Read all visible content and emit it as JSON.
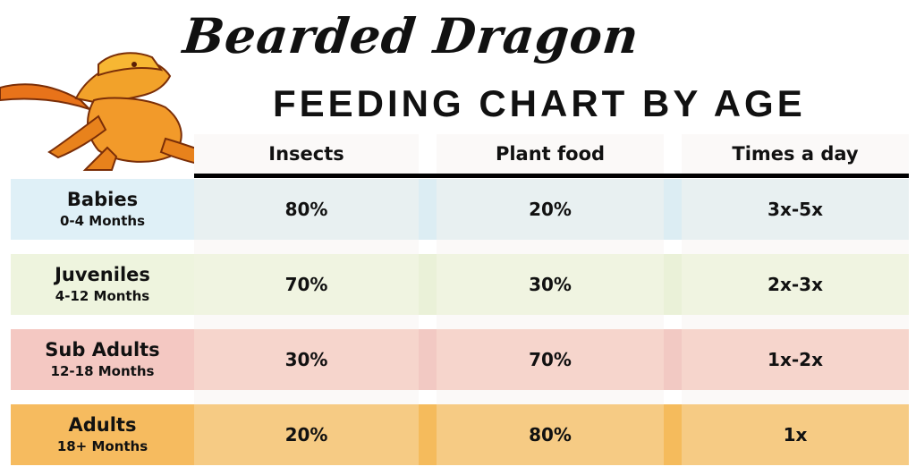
{
  "title": "Bearded Dragon",
  "subtitle": "FEEDING CHART BY AGE",
  "icon": "bearded-dragon-illustration",
  "columns": [
    "Insects",
    "Plant food",
    "Times a day"
  ],
  "rows": [
    {
      "label": "Babies",
      "sub": "0-4 Months",
      "insects": "80%",
      "plant": "20%",
      "times": "3x-5x",
      "colors": {
        "label": "#dff0f7",
        "cell": "#e8f0f1",
        "strip": "#dcedf3"
      }
    },
    {
      "label": "Juveniles",
      "sub": "4-12 Months",
      "insects": "70%",
      "plant": "30%",
      "times": "2x-3x",
      "colors": {
        "label": "#eef4de",
        "cell": "#f0f4e1",
        "strip": "#eaf1d8"
      }
    },
    {
      "label": "Sub Adults",
      "sub": "12-18 Months",
      "insects": "30%",
      "plant": "70%",
      "times": "1x-2x",
      "colors": {
        "label": "#f4c8c2",
        "cell": "#f6d5cc",
        "strip": "#f2c9c3"
      }
    },
    {
      "label": "Adults",
      "sub": "18+ Months",
      "insects": "20%",
      "plant": "80%",
      "times": "1x",
      "colors": {
        "label": "#f6bb5f",
        "cell": "#f6cb84",
        "strip": "#f5bb5c"
      }
    }
  ],
  "chart_data": {
    "type": "table",
    "title": "Bearded Dragon",
    "subtitle": "FEEDING CHART BY AGE",
    "columns": [
      "",
      "Insects",
      "Plant food",
      "Times a day"
    ],
    "rows": [
      [
        "Babies 0-4 Months",
        "80%",
        "20%",
        "3x-5x"
      ],
      [
        "Juveniles 4-12 Months",
        "70%",
        "30%",
        "2x-3x"
      ],
      [
        "Sub Adults 12-18 Months",
        "30%",
        "70%",
        "1x-2x"
      ],
      [
        "Adults 18+ Months",
        "20%",
        "80%",
        "1x"
      ]
    ]
  }
}
